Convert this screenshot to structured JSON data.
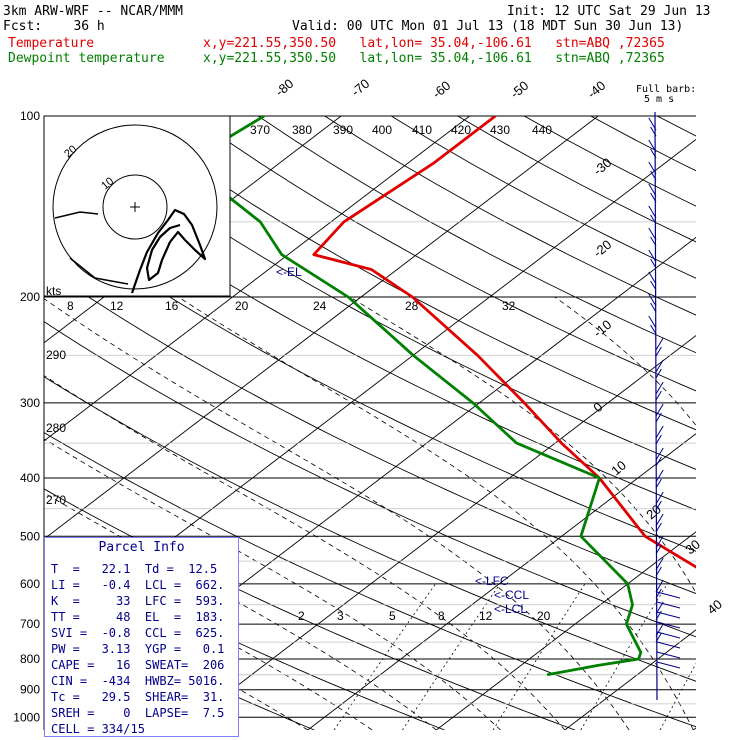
{
  "header": {
    "model": "3km ARW-WRF -- NCAR/MMM",
    "init": "Init: 12 UTC Sat 29 Jun 13",
    "fcst": "Fcst:    36 h",
    "valid": "Valid: 00 UTC Mon 01 Jul 13 (18 MDT Sun 30 Jun 13)",
    "temp_label": "Temperature",
    "temp_info": "x,y=221.55,350.50   lat,lon= 35.04,-106.61   stn=ABQ ,72365",
    "dew_label": "Dewpoint temperature",
    "dew_info": "x,y=221.55,350.50   lat,lon= 35.04,-106.61   stn=ABQ ,72365"
  },
  "barb_legend": {
    "line1": "Full barb:",
    "line2": "5 m s"
  },
  "el_label": "<-EL",
  "lfc_label": "<-LFC",
  "ccl_label": "<-CCL",
  "lcl_label": "<-LCL",
  "hodo_kts_label": "kts",
  "parcel": {
    "title": "Parcel Info",
    "rows": [
      "T  =   22.1  Td =  12.5",
      "LI =   -0.4  LCL =  662.",
      "K  =     33  LFC =  593.",
      "TT =     48  EL  =  183.",
      "SVI =  -0.8  CCL =  625.",
      "PW =   3.13  YGP =   0.1",
      "CAPE =   16  SWEAT=  206",
      "CIN =  -434  HWBZ= 5016.",
      "Tc =   29.5  SHEAR=  31.",
      "SREH =    0  LAPSE=  7.5",
      "CELL = 334/15"
    ]
  },
  "chart_data": {
    "type": "line",
    "chart": "skew-T log-P sounding",
    "x_axis": "temperature (C), skewed",
    "y_axis": "pressure (hPa), log scale",
    "pressure_levels": [
      100,
      200,
      300,
      400,
      500,
      600,
      700,
      800,
      900,
      1000
    ],
    "pressure_tick_labels": [
      "100",
      "200",
      "300",
      "400",
      "500",
      "600",
      "700",
      "800",
      "900",
      "1000"
    ],
    "isotherm_labels": [
      "-80",
      "-70",
      "-60",
      "-50",
      "-40",
      "-30",
      "-20",
      "-10",
      "0",
      "10",
      "20",
      "30",
      "40"
    ],
    "theta_labels_top": [
      "370",
      "380",
      "390",
      "400",
      "410",
      "420",
      "430",
      "440"
    ],
    "theta_labels_left": [
      "290",
      "280",
      "270"
    ],
    "mixing_ratio_labels": [
      "2",
      "3",
      "5",
      "8",
      "12",
      "20"
    ],
    "hodo_speed_labels": [
      "8",
      "12",
      "16",
      "20",
      "24",
      "28",
      "32"
    ],
    "hodo_ring_labels": [
      "20",
      "10"
    ],
    "series": [
      {
        "name": "Temperature",
        "color": "#e00000",
        "points": [
          [
            780,
            29.0
          ],
          [
            790,
            30.5
          ],
          [
            800,
            29.5
          ],
          [
            820,
            27.5
          ],
          [
            850,
            24.0
          ],
          [
            700,
            13.0
          ],
          [
            650,
            10.0
          ],
          [
            600,
            7.5
          ],
          [
            500,
            -3.5
          ],
          [
            400,
            -13.0
          ],
          [
            350,
            -19.5
          ],
          [
            300,
            -26.5
          ],
          [
            250,
            -35.0
          ],
          [
            200,
            -46.0
          ],
          [
            180,
            -52.0
          ],
          [
            170,
            -58.0
          ],
          [
            150,
            -59.0
          ],
          [
            120,
            -58.0
          ],
          [
            100,
            -58.0
          ]
        ]
      },
      {
        "name": "Dewpoint temperature",
        "color": "#008000",
        "points": [
          [
            780,
            8.0
          ],
          [
            800,
            8.5
          ],
          [
            820,
            6.0
          ],
          [
            850,
            3.0
          ],
          [
            700,
            4.0
          ],
          [
            650,
            2.5
          ],
          [
            600,
            0.0
          ],
          [
            500,
            -8.5
          ],
          [
            400,
            -13.0
          ],
          [
            350,
            -23.0
          ],
          [
            300,
            -30.5
          ],
          [
            250,
            -40.0
          ],
          [
            200,
            -51.0
          ],
          [
            170,
            -60.5
          ],
          [
            150,
            -65.5
          ],
          [
            130,
            -73.0
          ],
          [
            115,
            -77.0
          ],
          [
            100,
            -76.0
          ]
        ]
      }
    ]
  },
  "colors": {
    "temp": "#e00000",
    "dew": "#008000",
    "grid": "#000000",
    "barb": "#00008b"
  }
}
